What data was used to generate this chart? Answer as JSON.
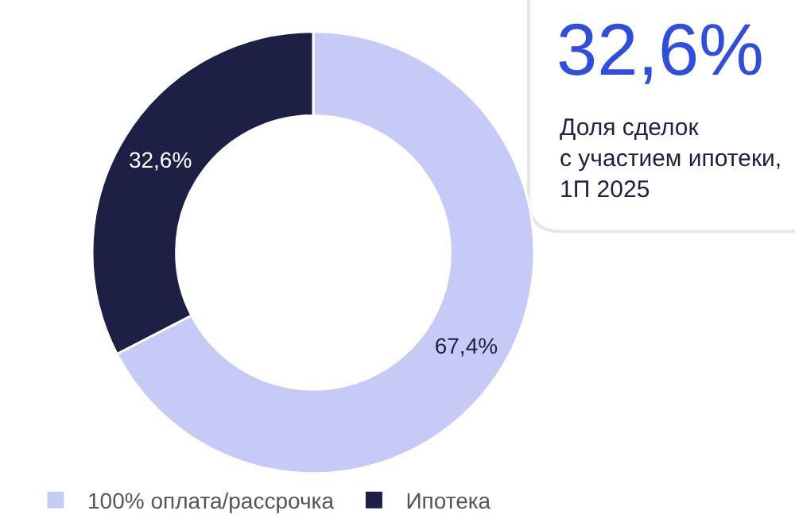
{
  "chart_data": {
    "type": "donut",
    "categories": [
      "100% оплата/рассрочка",
      "Ипотека"
    ],
    "values": [
      67.4,
      32.6
    ],
    "colors": [
      "#c6caf6",
      "#1d1f45"
    ],
    "value_labels": [
      "67,4%",
      "32,6%"
    ],
    "annotations": [
      "32,6%",
      "Доля сделок\nс участием ипотеки,\n1П 2025"
    ],
    "legend": "bottom left"
  }
}
